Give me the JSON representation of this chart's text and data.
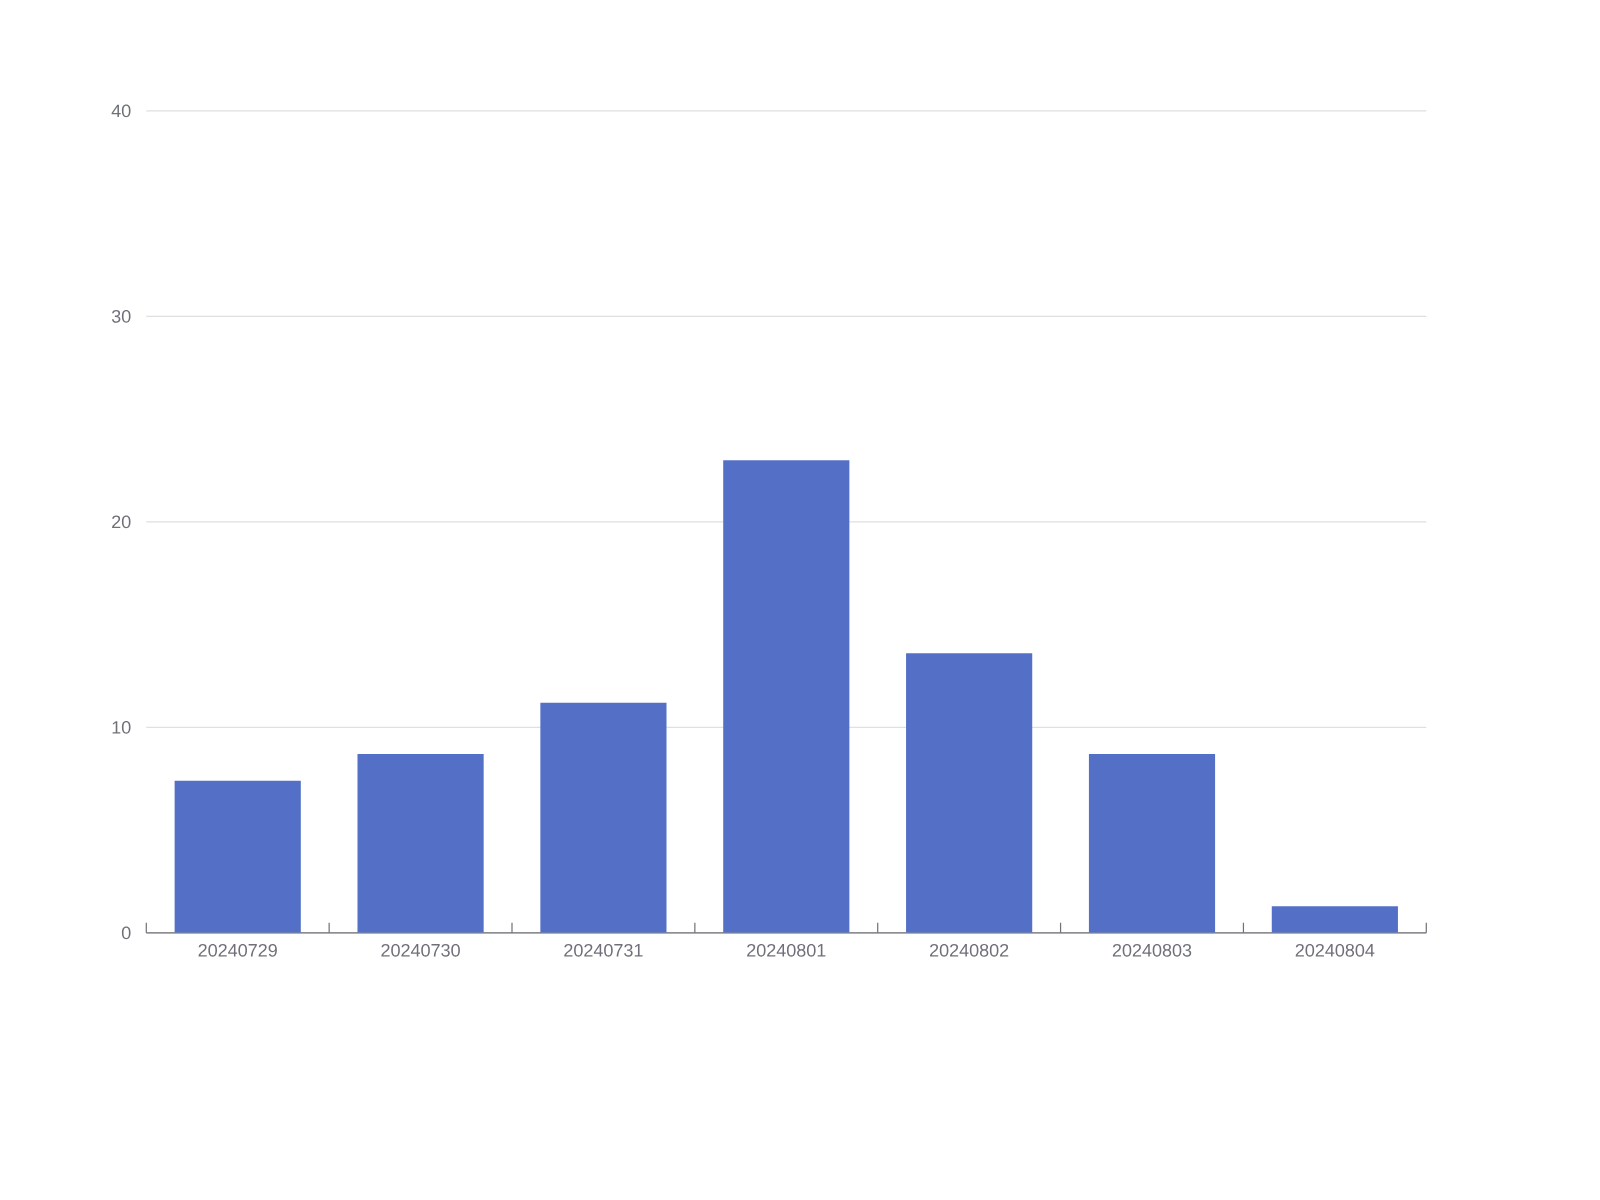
{
  "chart_data": {
    "type": "bar",
    "categories": [
      "20240729",
      "20240730",
      "20240731",
      "20240801",
      "20240802",
      "20240803",
      "20240804"
    ],
    "values": [
      7.4,
      8.7,
      11.2,
      23.0,
      13.6,
      8.7,
      1.3
    ],
    "color": "#5470c6",
    "ylim": [
      0,
      40
    ],
    "yticks": [
      0,
      10,
      20,
      30,
      40
    ],
    "grid": "y"
  }
}
